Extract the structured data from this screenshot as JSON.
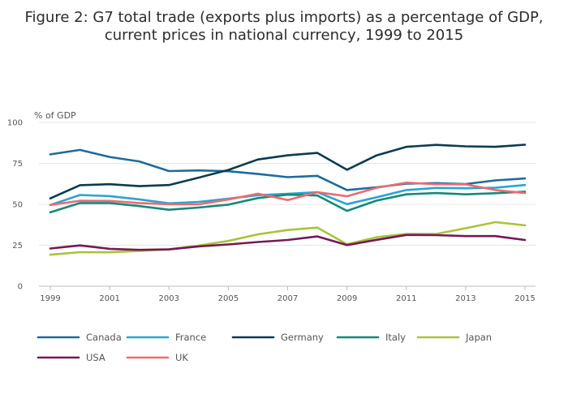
{
  "chart_data": {
    "type": "line",
    "title": "Figure 2: G7 total trade (exports plus imports) as a percentage of GDP,",
    "subtitle": "current prices in national currency, 1999 to 2015",
    "ylabel": "% of GDP",
    "xlabel": "",
    "ylim": [
      0,
      100
    ],
    "yticks": [
      0,
      25,
      50,
      75,
      100
    ],
    "xlim": [
      1999,
      2015
    ],
    "xticks": [
      1999,
      2001,
      2003,
      2005,
      2007,
      2009,
      2011,
      2013,
      2015
    ],
    "x": [
      1999,
      2000,
      2001,
      2002,
      2003,
      2004,
      2005,
      2006,
      2007,
      2008,
      2009,
      2010,
      2011,
      2012,
      2013,
      2014,
      2015
    ],
    "series": [
      {
        "name": "Canada",
        "color": "#1f6b9c",
        "values": [
          80.5,
          83.2,
          78.9,
          76.2,
          70.3,
          70.7,
          70.2,
          68.5,
          66.6,
          67.4,
          58.7,
          60.4,
          62.6,
          62.9,
          62.4,
          64.6,
          65.8
        ]
      },
      {
        "name": "France",
        "color": "#29a5d2",
        "values": [
          49.6,
          55.7,
          55.0,
          53.0,
          50.6,
          51.5,
          53.4,
          55.6,
          56.4,
          57.4,
          50.1,
          54.3,
          58.7,
          60.0,
          59.8,
          60.1,
          61.8
        ]
      },
      {
        "name": "Germany",
        "color": "#0a3c50",
        "values": [
          53.6,
          61.7,
          62.3,
          61.1,
          61.8,
          66.3,
          71.0,
          77.4,
          79.9,
          81.4,
          71.1,
          79.9,
          85.1,
          86.3,
          85.4,
          85.1,
          86.4
        ]
      },
      {
        "name": "Italy",
        "color": "#138a78",
        "values": [
          45.1,
          50.8,
          50.8,
          48.9,
          46.7,
          48.0,
          49.8,
          53.8,
          55.9,
          55.4,
          46.0,
          52.3,
          56.1,
          56.9,
          56.1,
          56.8,
          57.7
        ]
      },
      {
        "name": "Japan",
        "color": "#a8c43a",
        "values": [
          19.2,
          20.8,
          20.7,
          21.6,
          22.5,
          24.8,
          27.6,
          31.7,
          34.3,
          35.8,
          25.6,
          29.9,
          31.9,
          31.9,
          35.4,
          39.1,
          37.2
        ]
      },
      {
        "name": "USA",
        "color": "#741a56",
        "values": [
          23.0,
          24.9,
          22.8,
          22.2,
          22.5,
          24.3,
          25.5,
          27.0,
          28.2,
          30.4,
          25.1,
          28.3,
          31.3,
          31.2,
          30.6,
          30.6,
          28.2
        ]
      },
      {
        "name": "UK",
        "color": "#ee6a72",
        "values": [
          49.6,
          52.2,
          52.1,
          50.8,
          50.0,
          50.0,
          52.9,
          56.5,
          52.6,
          57.4,
          54.9,
          60.1,
          63.2,
          62.3,
          62.2,
          58.7,
          56.9
        ]
      }
    ],
    "legend_position": "bottom",
    "grid": true
  }
}
